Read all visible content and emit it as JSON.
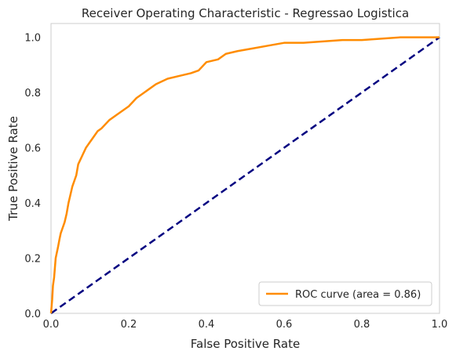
{
  "chart_data": {
    "type": "line",
    "title": "Receiver Operating Characteristic - Regressao Logistica",
    "xlabel": "False Positive Rate",
    "ylabel": "True Positive Rate",
    "xlim": [
      0.0,
      1.0
    ],
    "ylim": [
      0.0,
      1.05
    ],
    "x_ticks": [
      0.0,
      0.2,
      0.4,
      0.6,
      0.8,
      1.0
    ],
    "x_tick_labels": [
      "0.0",
      "0.2",
      "0.4",
      "0.6",
      "0.8",
      "1.0"
    ],
    "y_ticks": [
      0.0,
      0.2,
      0.4,
      0.6,
      0.8,
      1.0
    ],
    "y_tick_labels": [
      "0.0",
      "0.2",
      "0.4",
      "0.6",
      "0.8",
      "1.0"
    ],
    "grid": false,
    "legend_position": "lower right",
    "series": [
      {
        "name": "ROC curve (area = 0.86)",
        "color": "#ff8c00",
        "style": "solid",
        "x": [
          0.0,
          0.003,
          0.005,
          0.008,
          0.012,
          0.015,
          0.018,
          0.022,
          0.025,
          0.03,
          0.035,
          0.04,
          0.045,
          0.05,
          0.055,
          0.06,
          0.065,
          0.07,
          0.08,
          0.09,
          0.1,
          0.11,
          0.12,
          0.13,
          0.15,
          0.17,
          0.18,
          0.2,
          0.22,
          0.24,
          0.25,
          0.27,
          0.3,
          0.33,
          0.36,
          0.38,
          0.4,
          0.43,
          0.45,
          0.48,
          0.52,
          0.56,
          0.6,
          0.65,
          0.7,
          0.75,
          0.8,
          0.85,
          0.9,
          0.95,
          1.0
        ],
        "y": [
          0.0,
          0.05,
          0.1,
          0.13,
          0.2,
          0.22,
          0.24,
          0.27,
          0.29,
          0.31,
          0.33,
          0.36,
          0.4,
          0.43,
          0.46,
          0.48,
          0.5,
          0.54,
          0.57,
          0.6,
          0.62,
          0.64,
          0.66,
          0.67,
          0.7,
          0.72,
          0.73,
          0.75,
          0.78,
          0.8,
          0.81,
          0.83,
          0.85,
          0.86,
          0.87,
          0.88,
          0.91,
          0.92,
          0.94,
          0.95,
          0.96,
          0.97,
          0.98,
          0.98,
          0.985,
          0.99,
          0.99,
          0.995,
          1.0,
          1.0,
          1.0
        ]
      },
      {
        "name": "",
        "color": "#000080",
        "style": "dashed",
        "x": [
          0.0,
          1.0
        ],
        "y": [
          0.0,
          1.0
        ]
      }
    ]
  }
}
